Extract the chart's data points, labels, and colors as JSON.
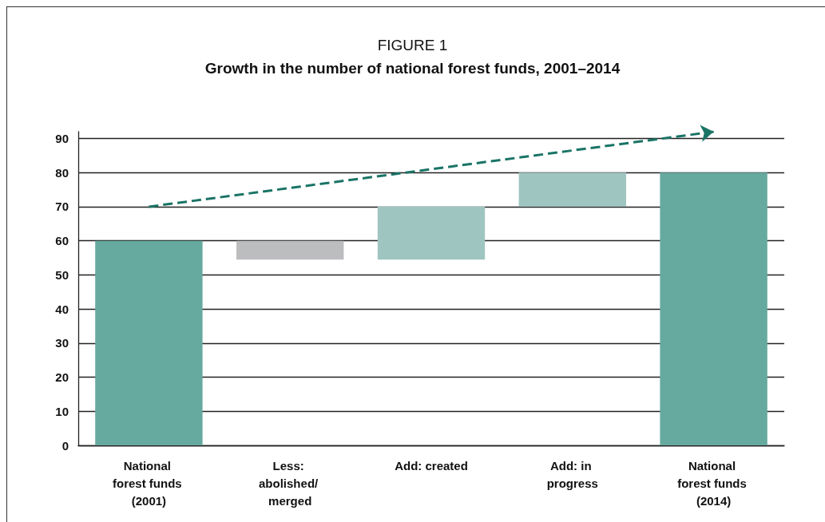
{
  "chart_data": {
    "type": "bar",
    "title": "FIGURE 1",
    "subtitle": "Growth in the number of national forest funds, 2001–2014",
    "categories": [
      "National forest funds (2001)",
      "Less: abolished/ merged",
      "Add: created",
      "Add: in progress",
      "National forest funds (2014)"
    ],
    "values": [
      60,
      5.5,
      15.5,
      10,
      80
    ],
    "base": [
      0,
      54.5,
      54.5,
      70,
      0
    ],
    "colors": [
      "#66a99f",
      "#bcbdbf",
      "#9fc5c0",
      "#9fc5c0",
      "#66a99f"
    ],
    "series": [
      {
        "type": "line",
        "x": [
          "National forest funds (2001)",
          "National forest funds (2014)"
        ],
        "values": [
          70,
          92
        ],
        "color": "#1a7466",
        "line_style": "dashed"
      }
    ],
    "ylim": [
      0,
      92
    ],
    "yticks": [
      0,
      10,
      20,
      30,
      40,
      50,
      60,
      70,
      80,
      90
    ],
    "grid": "y"
  }
}
